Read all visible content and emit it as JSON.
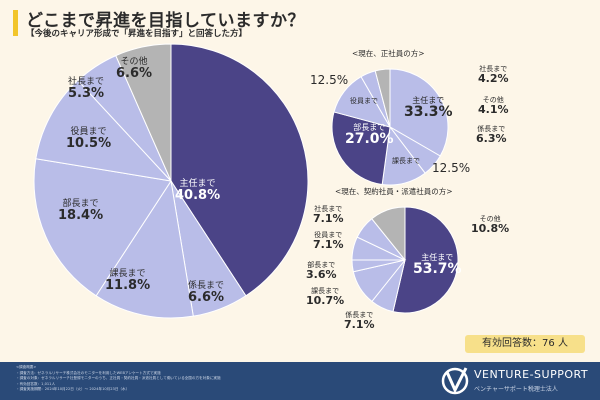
{
  "title": "どこまで昇進を目指していますか？",
  "subtitle": "【今後のキャリア形成で「昇進を目指す」と回答した方】",
  "colors": {
    "dark": "#4b4487",
    "light": "#b9bde8",
    "gray": "#b4b4b4",
    "accent": "#f2c52a",
    "footer": "#2a4a78"
  },
  "chart_data": [
    {
      "type": "pie",
      "title": "",
      "categories": [
        "主任まで",
        "係長まで",
        "課長まで",
        "部長まで",
        "役員まで",
        "社長まで",
        "その他"
      ],
      "values": [
        40.8,
        6.6,
        11.8,
        18.4,
        10.5,
        5.3,
        6.6
      ],
      "unit": "%"
    },
    {
      "type": "pie",
      "title": "<現在、正社員の方>",
      "categories": [
        "主任まで",
        "係長まで",
        "課長まで",
        "部長まで",
        "役員まで",
        "社長まで",
        "その他"
      ],
      "values": [
        33.3,
        6.3,
        12.5,
        27.0,
        12.5,
        4.2,
        4.1
      ],
      "unit": "%"
    },
    {
      "type": "pie",
      "title": "<現在、契約社員・派遣社員の方>",
      "categories": [
        "主任まで",
        "係長まで",
        "課長まで",
        "部長まで",
        "役員まで",
        "社長まで",
        "その他"
      ],
      "values": [
        53.7,
        7.1,
        10.7,
        3.6,
        7.1,
        7.1,
        10.8
      ],
      "unit": "%"
    }
  ],
  "labels": {
    "main": [
      "40.8%",
      "6.6%",
      "11.8%",
      "18.4%",
      "10.5%",
      "5.3%",
      "6.6%"
    ],
    "p2": [
      "33.3%",
      "6.3%",
      "12.5%",
      "27.0%",
      "12.5%",
      "4.2%",
      "4.1%"
    ],
    "p3": [
      "53.7%",
      "7.1%",
      "10.7%",
      "3.6%",
      "7.1%",
      "7.1%",
      "10.8%"
    ]
  },
  "count": "有効回答数：76 人",
  "footer": {
    "lines": [
      "<調査概要>",
      "・調査方法：ゼネラルリサーチ株式会社のモニターを利用したWEBアンケート方式で実施",
      "・調査の対象：ゼネラルリサーチ社登録モニターのうち、正社員・契約社員・派遣社員として働いている全国の方を対象に実施",
      "・有効回答数：1,011人",
      "・調査実施期間：2024年10月22日（火）～ 2024年10月23日（水）"
    ],
    "brand": "VENTURE-SUPPORT",
    "brand_sub": "ベンチャーサポート税理士法人"
  }
}
